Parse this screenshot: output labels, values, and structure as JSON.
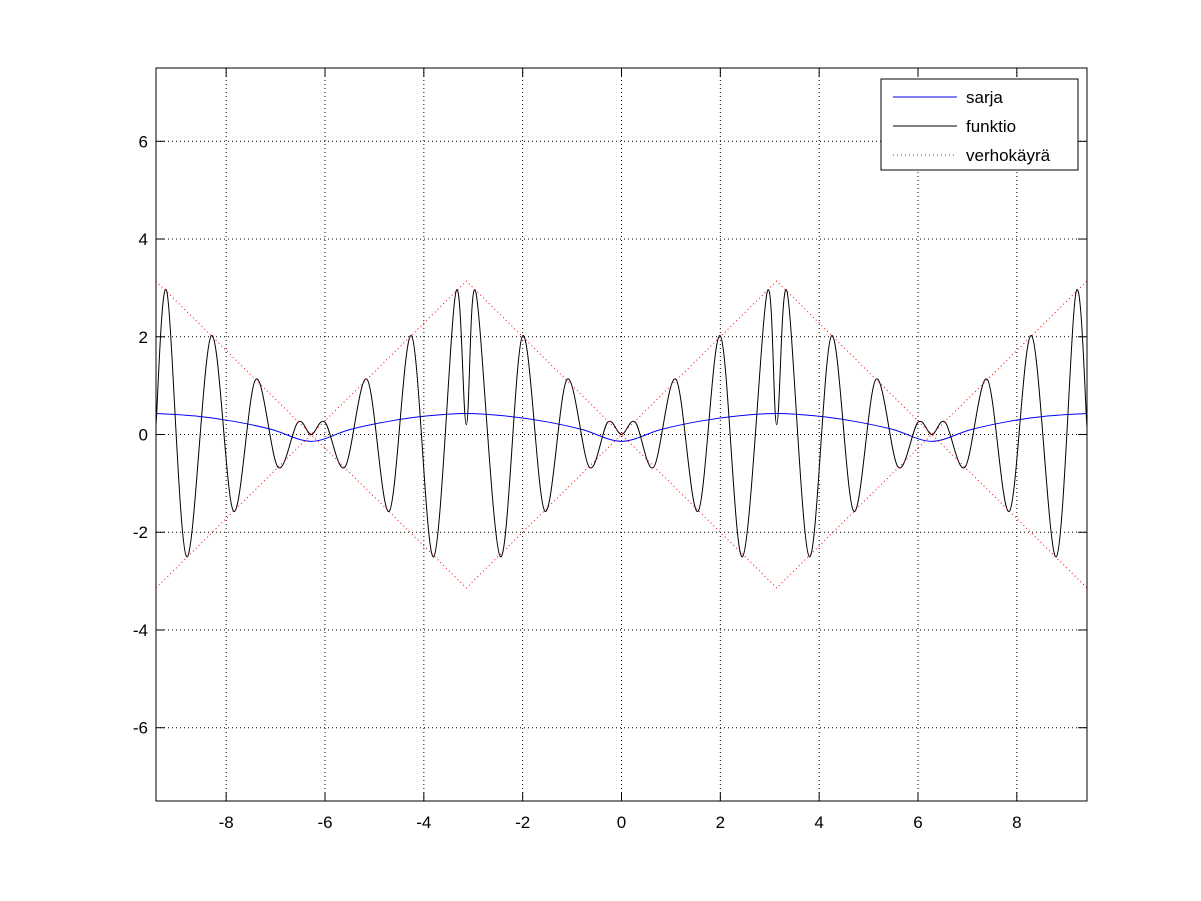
{
  "chart_data": {
    "type": "line",
    "xlim": [
      -9.42,
      9.42
    ],
    "ylim": [
      -7.5,
      7.5
    ],
    "xticks": [
      -8,
      -6,
      -4,
      -2,
      0,
      2,
      4,
      6,
      8
    ],
    "yticks": [
      -6,
      -4,
      -2,
      0,
      2,
      4,
      6
    ],
    "grid": true,
    "legend_position": "top-right",
    "series": [
      {
        "name": "sarja",
        "color": "#0000ff",
        "style": "solid",
        "x": [
          -9.42,
          -8.64,
          -7.85,
          -7.07,
          -6.28,
          -5.5,
          -4.71,
          -3.93,
          -3.14,
          -2.36,
          -1.57,
          -0.79,
          0,
          0.79,
          1.57,
          2.36,
          3.14,
          3.93,
          4.71,
          5.5,
          6.28,
          7.07,
          7.85,
          8.64,
          9.42
        ],
        "y": [
          0.43,
          0.38,
          0.27,
          0.1,
          -0.14,
          0.1,
          0.27,
          0.38,
          0.43,
          0.38,
          0.27,
          0.1,
          -0.14,
          0.1,
          0.27,
          0.38,
          0.43,
          0.38,
          0.27,
          0.1,
          -0.14,
          0.1,
          0.27,
          0.38,
          0.43
        ]
      },
      {
        "name": "funktio",
        "color": "#000000",
        "style": "solid",
        "x": [
          -9.42,
          -9.2,
          -8.8,
          -8.3,
          -7.85,
          -7.4,
          -6.95,
          -6.55,
          -6.28,
          -6.0,
          -5.6,
          -5.15,
          -4.7,
          -4.25,
          -3.8,
          -3.35,
          -3.14,
          -2.95,
          -2.45,
          -2.0,
          -1.55,
          -1.1,
          -0.65,
          -0.28,
          0,
          0.28,
          0.65,
          1.1,
          1.55,
          2.0,
          2.45,
          2.95,
          3.14,
          3.35,
          3.8,
          4.25,
          4.7,
          5.15,
          5.6,
          6.0,
          6.28,
          6.55,
          6.95,
          7.4,
          7.85,
          8.3,
          8.8,
          9.2,
          9.42
        ],
        "y": [
          0.2,
          2.92,
          -2.5,
          2.02,
          -1.57,
          1.13,
          -0.67,
          0.25,
          0.0,
          0.25,
          -0.67,
          1.13,
          -1.57,
          2.02,
          -2.5,
          2.92,
          0.2,
          2.92,
          -2.5,
          2.02,
          -1.57,
          1.13,
          -0.67,
          0.25,
          0.0,
          0.25,
          -0.67,
          1.13,
          -1.57,
          2.02,
          -2.5,
          2.92,
          0.2,
          2.92,
          -2.5,
          2.02,
          -1.57,
          1.13,
          -0.67,
          0.25,
          0.0,
          0.25,
          -0.67,
          1.13,
          -1.57,
          2.02,
          -2.5,
          2.92,
          0.15
        ]
      },
      {
        "name": "verhokäyrä",
        "color": "#ff0000",
        "style": "dotted",
        "x": [
          -9.42,
          -6.28,
          -3.14,
          0,
          3.14,
          6.28,
          9.42
        ],
        "y": [
          3.14,
          0.0,
          3.14,
          0.0,
          3.14,
          0.0,
          3.14
        ],
        "mirror": true
      }
    ]
  }
}
